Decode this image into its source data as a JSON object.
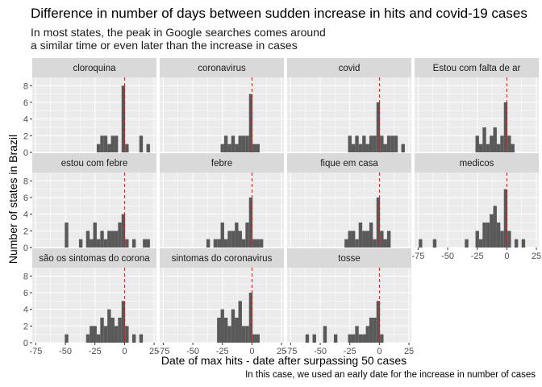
{
  "title": "Difference in number of days between sudden increase in hits and covid-19 cases",
  "subtitle": [
    "In most states, the peak in Google searches comes around",
    "a similar time or even later than the increase in cases"
  ],
  "caption": "In this case, we used an early date for the increase in number of cases",
  "colors": {
    "bar": "#595959",
    "strip": "#d9d9d9",
    "panel": "#ebebeb",
    "grid": "#ffffff",
    "refline": "#cc1f1f"
  },
  "chart_data": {
    "type": "bar",
    "subtype": "faceted-histogram",
    "xlabel": "Date of max hits - date after surpassing 50 cases",
    "ylabel": "Number of states in Brazil",
    "xlim": [
      -78,
      27
    ],
    "ylim": [
      0,
      9
    ],
    "xticks": [
      -75,
      -50,
      -25,
      0,
      25
    ],
    "xtick_labels": [
      "-75",
      "-50",
      "-25",
      "0",
      "25"
    ],
    "yticks": [
      0,
      2,
      4,
      6,
      8
    ],
    "ytick_labels": [
      "0",
      "2",
      "4",
      "6",
      "8"
    ],
    "bin_width": 3,
    "reference_line": {
      "x": 0,
      "style": "dashed",
      "color": "#cc1f1f"
    },
    "grid": true,
    "facets": [
      {
        "name": "cloroquina",
        "bins": [
          [
            -22,
            1
          ],
          [
            -19,
            2
          ],
          [
            -16,
            2
          ],
          [
            -13,
            1
          ],
          [
            -10,
            2
          ],
          [
            -7,
            2
          ],
          [
            -1,
            8
          ],
          [
            2,
            1
          ],
          [
            14,
            2
          ],
          [
            20,
            1
          ]
        ]
      },
      {
        "name": "coronavirus",
        "bins": [
          [
            -25,
            1
          ],
          [
            -22,
            2
          ],
          [
            -19,
            1
          ],
          [
            -16,
            2
          ],
          [
            -13,
            1
          ],
          [
            -10,
            2
          ],
          [
            -7,
            2
          ],
          [
            -4,
            2
          ],
          [
            -1,
            7
          ],
          [
            2,
            1
          ],
          [
            5,
            1
          ]
        ]
      },
      {
        "name": "covid",
        "bins": [
          [
            -25,
            2
          ],
          [
            -22,
            1
          ],
          [
            -19,
            2
          ],
          [
            -16,
            1
          ],
          [
            -13,
            2
          ],
          [
            -10,
            1
          ],
          [
            -7,
            2
          ],
          [
            -4,
            2
          ],
          [
            -1,
            6
          ],
          [
            2,
            2
          ],
          [
            5,
            1
          ],
          [
            8,
            2
          ],
          [
            11,
            2
          ],
          [
            14,
            2
          ],
          [
            20,
            1
          ]
        ]
      },
      {
        "name": "Estou com falta de ar",
        "bins": [
          [
            -25,
            2
          ],
          [
            -22,
            1
          ],
          [
            -19,
            3
          ],
          [
            -16,
            1
          ],
          [
            -13,
            2
          ],
          [
            -10,
            3
          ],
          [
            -7,
            1
          ],
          [
            -4,
            2
          ],
          [
            -1,
            6
          ],
          [
            2,
            2
          ],
          [
            5,
            1
          ]
        ]
      },
      {
        "name": "estou com febre",
        "bins": [
          [
            -49,
            3
          ],
          [
            -37,
            1
          ],
          [
            -31,
            2
          ],
          [
            -28,
            1
          ],
          [
            -25,
            3
          ],
          [
            -22,
            1
          ],
          [
            -19,
            2
          ],
          [
            -16,
            1
          ],
          [
            -13,
            2
          ],
          [
            -10,
            2
          ],
          [
            -7,
            2
          ],
          [
            -4,
            3
          ],
          [
            -1,
            4
          ],
          [
            2,
            1
          ],
          [
            8,
            1
          ],
          [
            17,
            1
          ],
          [
            20,
            1
          ]
        ]
      },
      {
        "name": "febre",
        "bins": [
          [
            -37,
            1
          ],
          [
            -31,
            1
          ],
          [
            -28,
            1
          ],
          [
            -25,
            3
          ],
          [
            -22,
            1
          ],
          [
            -19,
            2
          ],
          [
            -16,
            2
          ],
          [
            -13,
            3
          ],
          [
            -10,
            2
          ],
          [
            -7,
            1
          ],
          [
            -4,
            3
          ],
          [
            -1,
            6
          ],
          [
            2,
            1
          ],
          [
            5,
            1
          ],
          [
            8,
            1
          ]
        ]
      },
      {
        "name": "fique em casa",
        "bins": [
          [
            -28,
            1
          ],
          [
            -25,
            2
          ],
          [
            -22,
            2
          ],
          [
            -19,
            1
          ],
          [
            -16,
            3
          ],
          [
            -13,
            2
          ],
          [
            -10,
            2
          ],
          [
            -7,
            3
          ],
          [
            -4,
            1
          ],
          [
            -1,
            6
          ],
          [
            2,
            2
          ],
          [
            5,
            1
          ],
          [
            8,
            2
          ]
        ]
      },
      {
        "name": "medicos",
        "bins": [
          [
            -73,
            1
          ],
          [
            -61,
            1
          ],
          [
            -34,
            1
          ],
          [
            -25,
            2
          ],
          [
            -22,
            1
          ],
          [
            -19,
            3
          ],
          [
            -16,
            3
          ],
          [
            -13,
            4
          ],
          [
            -10,
            5
          ],
          [
            -7,
            3
          ],
          [
            -4,
            2
          ],
          [
            -1,
            7
          ],
          [
            2,
            2
          ],
          [
            8,
            1
          ],
          [
            14,
            1
          ]
        ]
      },
      {
        "name": "são os sintomas do corona",
        "bins": [
          [
            -49,
            1
          ],
          [
            -31,
            1
          ],
          [
            -28,
            2
          ],
          [
            -25,
            2
          ],
          [
            -22,
            1
          ],
          [
            -19,
            3
          ],
          [
            -16,
            2
          ],
          [
            -13,
            4
          ],
          [
            -10,
            3
          ],
          [
            -7,
            2
          ],
          [
            -4,
            3
          ],
          [
            -1,
            5
          ],
          [
            2,
            2
          ],
          [
            8,
            1
          ],
          [
            14,
            1
          ]
        ]
      },
      {
        "name": "sintomas do coronavirus",
        "bins": [
          [
            -28,
            3
          ],
          [
            -25,
            4
          ],
          [
            -22,
            3
          ],
          [
            -19,
            2
          ],
          [
            -16,
            4
          ],
          [
            -13,
            3
          ],
          [
            -10,
            5
          ],
          [
            -7,
            2
          ],
          [
            -4,
            2
          ],
          [
            -1,
            6
          ],
          [
            2,
            1
          ],
          [
            5,
            1
          ]
        ]
      },
      {
        "name": "tosse",
        "bins": [
          [
            -61,
            1
          ],
          [
            -55,
            1
          ],
          [
            -46,
            2
          ],
          [
            -37,
            1
          ],
          [
            -25,
            1
          ],
          [
            -22,
            1
          ],
          [
            -19,
            2
          ],
          [
            -16,
            1
          ],
          [
            -13,
            1
          ],
          [
            -10,
            2
          ],
          [
            -7,
            3
          ],
          [
            -4,
            3
          ],
          [
            -1,
            5
          ],
          [
            2,
            1
          ]
        ]
      }
    ]
  }
}
